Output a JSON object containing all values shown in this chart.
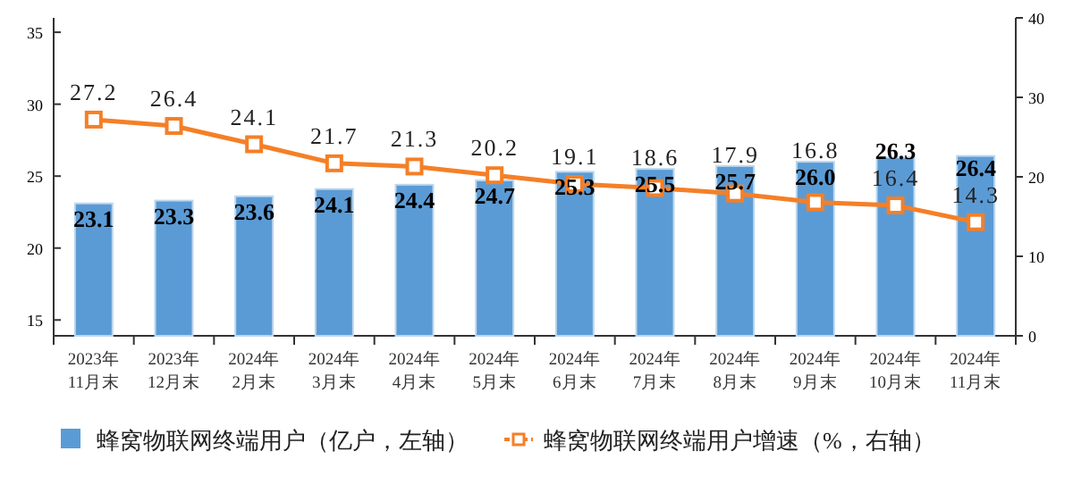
{
  "chart_data": {
    "type": "bar",
    "categories": [
      "2023年\n11月末",
      "2023年\n12月末",
      "2024年\n2月末",
      "2024年\n3月末",
      "2024年\n4月末",
      "2024年\n5月末",
      "2024年\n6月末",
      "2024年\n7月末",
      "2024年\n8月末",
      "2024年\n9月末",
      "2024年\n10月末",
      "2024年\n11月末"
    ],
    "series": [
      {
        "name": "蜂窝物联网终端用户（亿户，左轴）",
        "color": "#5b9bd5",
        "values": [
          23.1,
          23.3,
          23.6,
          24.1,
          24.4,
          24.7,
          25.3,
          25.5,
          25.7,
          26.0,
          26.3,
          26.4
        ],
        "value_labels": [
          "23.1",
          "23.3",
          "23.6",
          "24.1",
          "24.4",
          "24.7",
          "25.3",
          "25.5",
          "25.7",
          "26.0",
          "26.3",
          "26.4"
        ]
      },
      {
        "name": "蜂窝物联网终端用户增速（%，右轴）",
        "type": "line",
        "axis": "y2",
        "color": "#f57f27",
        "marker": "square",
        "values": [
          27.2,
          26.4,
          24.1,
          21.7,
          21.3,
          20.2,
          19.1,
          18.6,
          17.9,
          16.8,
          16.4,
          14.3
        ],
        "value_labels": [
          "27.2",
          "26.4",
          "24.1",
          "21.7",
          "21.3",
          "20.2",
          "19.1",
          "18.6",
          "17.9",
          "16.8",
          "16.4",
          "14.3"
        ]
      }
    ],
    "ylim": [
      13.9,
      36
    ],
    "yticks": [
      15,
      20,
      25,
      30,
      35
    ],
    "y2lim": [
      0,
      40
    ],
    "y2ticks": [
      0,
      10,
      20,
      30,
      40
    ],
    "legend": "bottom",
    "grid": false
  }
}
